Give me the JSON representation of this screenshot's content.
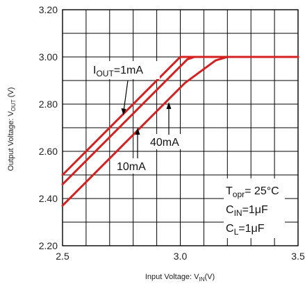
{
  "chart_data": {
    "type": "line",
    "xlabel": {
      "main": "Input Voltage: V",
      "sub": "IN",
      "tail": "(V)"
    },
    "ylabel": {
      "main": "Output Voltage: V",
      "sub": "OUT",
      "tail": " (V)"
    },
    "xlim": [
      2.5,
      3.5
    ],
    "ylim": [
      2.2,
      3.2
    ],
    "x_ticks": [
      2.5,
      3.0,
      3.5
    ],
    "x_tick_labels": [
      "2.5",
      "3.0",
      "3.5"
    ],
    "y_ticks": [
      2.2,
      2.4,
      2.6,
      2.8,
      3.0,
      3.2
    ],
    "y_tick_labels": [
      "2.20",
      "2.40",
      "2.60",
      "2.80",
      "3.00",
      "3.20"
    ],
    "grid": true,
    "x_grid_step": 0.1,
    "y_grid_step": 0.1,
    "series": [
      {
        "name": "IOUT=1mA",
        "x": [
          2.5,
          3.0,
          3.04,
          3.5
        ],
        "y": [
          2.5,
          3.0,
          3.0,
          3.0
        ]
      },
      {
        "name": "10mA",
        "x": [
          2.5,
          2.98,
          3.03,
          3.06,
          3.5
        ],
        "y": [
          2.46,
          2.94,
          2.99,
          3.0,
          3.0
        ]
      },
      {
        "name": "40mA",
        "x": [
          2.5,
          3.02,
          3.15,
          3.2,
          3.5
        ],
        "y": [
          2.37,
          2.89,
          2.985,
          3.0,
          3.0
        ]
      }
    ],
    "annotations": {
      "iout": {
        "main": "I",
        "sub": "OUT",
        "tail": "=1mA"
      },
      "i10": "10mA",
      "i40": "40mA",
      "conditions": [
        {
          "main": "T",
          "sub": "opr",
          "tail": "= 25°C"
        },
        {
          "main": "C",
          "sub": "IN",
          "tail": "=1μF"
        },
        {
          "main": "C",
          "sub": "L",
          "tail": "=1μF"
        }
      ]
    },
    "colors": {
      "series": "#d42020",
      "grid": "#000000"
    }
  }
}
